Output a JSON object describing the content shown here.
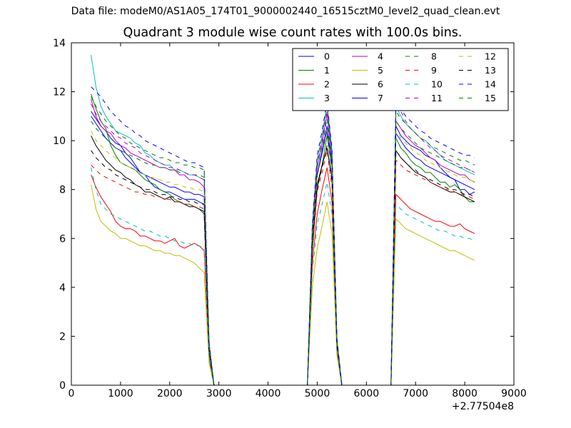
{
  "figure": {
    "suptitle": "Data file: modeM0/AS1A05_174T01_9000002440_16515cztM0_level2_quad_clean.evt",
    "title": "Quadrant 3 module wise count rates with 100.0s bins."
  },
  "chart_data": {
    "type": "line",
    "title": "Quadrant 3 module wise count rates with 100.0s bins.",
    "xlabel": "",
    "ylabel": "",
    "x_offset_text": "+2.77504e8",
    "xlim": [
      0,
      9000
    ],
    "ylim": [
      0,
      14
    ],
    "xticks": [
      0,
      1000,
      2000,
      3000,
      4000,
      5000,
      6000,
      7000,
      8000,
      9000
    ],
    "yticks": [
      0,
      2,
      4,
      6,
      8,
      10,
      12,
      14
    ],
    "grid": false,
    "legend": {
      "placement": "top-right",
      "columns": 4
    },
    "segments": [
      {
        "x_start": 400,
        "x_end": 2700,
        "step": 100
      },
      {
        "x_start": 4900,
        "x_end": 5300,
        "step": 100
      },
      {
        "x_start": 6600,
        "x_end": 8200,
        "step": 100
      }
    ],
    "series": [
      {
        "name": "0",
        "color": "#0000ff",
        "style": "solid",
        "s1": [
          11.2,
          10.9,
          10.6,
          10.4,
          10.1,
          9.9,
          9.8,
          9.5,
          9.3,
          9.0,
          8.7,
          8.6,
          8.3,
          8.1,
          8.0,
          7.9,
          7.9,
          7.8,
          7.7,
          7.6,
          7.6,
          7.6,
          7.5,
          7.4
        ],
        "s2": [
          6.0,
          8.6,
          9.6,
          10.6,
          9.0
        ],
        "s3": [
          10.6,
          10.2,
          10.0,
          9.8,
          9.7,
          9.6,
          9.4,
          9.3,
          9.2,
          8.9,
          8.7,
          8.5,
          8.4,
          8.0,
          8.0,
          7.8,
          7.9
        ]
      },
      {
        "name": "1",
        "color": "#008000",
        "style": "solid",
        "s1": [
          11.9,
          11.3,
          10.8,
          10.5,
          9.8,
          9.4,
          9.1,
          9.0,
          8.9,
          8.8,
          8.6,
          8.4,
          8.3,
          8.2,
          8.0,
          7.9,
          7.8,
          7.6,
          7.5,
          7.4,
          7.4,
          7.3,
          7.2,
          7.0
        ],
        "s2": [
          5.5,
          8.0,
          9.0,
          10.2,
          8.8
        ],
        "s3": [
          10.1,
          9.7,
          9.5,
          9.2,
          9.0,
          8.9,
          8.7,
          8.7,
          8.5,
          8.3,
          8.3,
          8.1,
          8.2,
          8.0,
          7.7,
          7.5,
          7.5
        ]
      },
      {
        "name": "2",
        "color": "#ff0000",
        "style": "solid",
        "s1": [
          8.6,
          8.1,
          7.7,
          7.4,
          7.1,
          6.7,
          6.5,
          6.4,
          6.4,
          6.3,
          6.1,
          6.1,
          6.0,
          5.9,
          5.9,
          5.8,
          5.9,
          6.0,
          5.7,
          5.6,
          5.7,
          5.8,
          5.7,
          5.5
        ],
        "s2": [
          5.0,
          7.0,
          8.0,
          8.9,
          7.5
        ],
        "s3": [
          7.8,
          7.6,
          7.4,
          7.2,
          7.1,
          7.0,
          6.9,
          6.8,
          6.7,
          6.7,
          6.6,
          6.5,
          6.5,
          6.6,
          6.4,
          6.3,
          6.2
        ]
      },
      {
        "name": "3",
        "color": "#00bfbf",
        "style": "solid",
        "s1": [
          13.5,
          12.2,
          11.4,
          11.0,
          10.7,
          10.4,
          10.3,
          10.2,
          10.1,
          9.9,
          9.8,
          9.5,
          9.4,
          9.2,
          9.1,
          9.0,
          9.0,
          8.8,
          8.8,
          8.7,
          8.6,
          8.6,
          8.5,
          8.4
        ],
        "s2": [
          6.5,
          9.2,
          10.2,
          11.5,
          9.6
        ],
        "s3": [
          11.4,
          11.0,
          10.7,
          10.5,
          10.3,
          10.1,
          10.0,
          9.8,
          9.6,
          9.4,
          9.2,
          9.1,
          9.0,
          8.9,
          8.8,
          8.7,
          8.6
        ]
      },
      {
        "name": "4",
        "color": "#bf00bf",
        "style": "solid",
        "s1": [
          11.7,
          11.0,
          10.6,
          10.4,
          10.3,
          10.0,
          9.8,
          9.7,
          9.5,
          9.4,
          9.3,
          9.2,
          9.1,
          9.0,
          8.9,
          8.9,
          8.8,
          8.8,
          8.6,
          8.6,
          8.4,
          8.4,
          8.3,
          8.1
        ],
        "s2": [
          6.2,
          8.9,
          9.9,
          11.1,
          9.3
        ],
        "s3": [
          10.8,
          10.5,
          10.2,
          10.0,
          9.8,
          9.7,
          9.5,
          9.3,
          9.2,
          9.0,
          8.9,
          8.8,
          8.7,
          8.6,
          8.6,
          8.4,
          8.3
        ]
      },
      {
        "name": "5",
        "color": "#bfbf00",
        "style": "solid",
        "s1": [
          8.2,
          7.2,
          6.7,
          6.5,
          6.3,
          6.2,
          6.0,
          6.0,
          5.9,
          5.8,
          5.7,
          5.7,
          5.6,
          5.5,
          5.5,
          5.4,
          5.4,
          5.3,
          5.3,
          5.2,
          5.1,
          5.0,
          4.8,
          4.6
        ],
        "s2": [
          4.0,
          5.6,
          6.5,
          7.5,
          6.2
        ],
        "s3": [
          6.8,
          6.6,
          6.4,
          6.3,
          6.2,
          6.1,
          6.0,
          5.9,
          5.8,
          5.7,
          5.6,
          5.5,
          5.5,
          5.4,
          5.3,
          5.2,
          5.1
        ]
      },
      {
        "name": "6",
        "color": "#000000",
        "style": "solid",
        "s1": [
          10.2,
          9.8,
          9.5,
          9.2,
          9.0,
          8.8,
          8.7,
          8.5,
          8.4,
          8.2,
          8.1,
          7.9,
          7.9,
          7.8,
          7.7,
          7.6,
          7.7,
          7.5,
          7.5,
          7.4,
          7.3,
          7.3,
          7.2,
          7.1
        ],
        "s2": [
          5.8,
          8.2,
          9.0,
          9.7,
          8.5
        ],
        "s3": [
          9.6,
          9.3,
          9.1,
          8.9,
          8.7,
          8.6,
          8.5,
          8.3,
          8.2,
          8.1,
          8.0,
          7.9,
          7.9,
          7.8,
          7.7,
          7.6,
          7.5
        ]
      },
      {
        "name": "7",
        "color": "#0000ff",
        "style": "solid",
        "s1": [
          11.0,
          10.7,
          10.4,
          10.1,
          9.9,
          9.7,
          9.6,
          9.3,
          9.1,
          8.9,
          8.7,
          8.6,
          8.5,
          8.4,
          8.3,
          8.2,
          8.1,
          8.1,
          8.0,
          7.9,
          7.9,
          7.8,
          7.8,
          7.7
        ],
        "s2": [
          6.1,
          8.6,
          9.5,
          10.4,
          8.9
        ],
        "s3": [
          10.3,
          10.0,
          9.7,
          9.5,
          9.3,
          9.2,
          9.0,
          8.9,
          8.8,
          8.7,
          8.6,
          8.5,
          8.4,
          8.3,
          8.2,
          8.1,
          8.0
        ]
      },
      {
        "name": "8",
        "color": "#008000",
        "style": "dashed",
        "s1": [
          10.8,
          10.5,
          10.3,
          10.1,
          9.9,
          9.7,
          9.6,
          9.5,
          9.4,
          9.3,
          9.2,
          9.1,
          9.0,
          9.0,
          8.9,
          8.9,
          8.8,
          8.8,
          8.7,
          8.7,
          8.6,
          8.6,
          8.6,
          8.5
        ],
        "s2": [
          6.3,
          8.9,
          9.8,
          10.9,
          9.2
        ],
        "s3": [
          10.8,
          10.5,
          10.3,
          10.1,
          9.9,
          9.7,
          9.6,
          9.5,
          9.4,
          9.3,
          9.2,
          9.1,
          9.0,
          8.9,
          8.9,
          8.8,
          8.7
        ]
      },
      {
        "name": "9",
        "color": "#ff0000",
        "style": "dashed",
        "s1": [
          9.0,
          8.8,
          8.6,
          8.5,
          8.4,
          8.3,
          8.2,
          8.1,
          8.0,
          7.9,
          7.9,
          7.8,
          7.8,
          7.7,
          7.7,
          7.6,
          7.6,
          7.5,
          7.5,
          7.4,
          7.4,
          7.3,
          7.3,
          7.2
        ],
        "s2": [
          5.6,
          7.9,
          8.7,
          9.6,
          8.1
        ],
        "s3": [
          9.2,
          9.0,
          8.8,
          8.7,
          8.6,
          8.5,
          8.4,
          8.3,
          8.2,
          8.1,
          8.0,
          8.0,
          7.9,
          7.8,
          7.8,
          7.7,
          7.6
        ]
      },
      {
        "name": "10",
        "color": "#00bfbf",
        "style": "dashed",
        "s1": [
          8.9,
          8.0,
          7.4,
          7.2,
          7.0,
          6.9,
          6.8,
          6.7,
          6.6,
          6.5,
          6.4,
          6.3,
          6.3,
          6.2,
          6.1,
          6.1,
          6.0,
          5.9,
          5.9,
          5.8,
          5.8,
          5.7,
          5.7,
          5.6
        ],
        "s2": [
          4.6,
          6.6,
          7.4,
          8.3,
          7.0
        ],
        "s3": [
          7.4,
          7.2,
          7.0,
          6.9,
          6.8,
          6.7,
          6.6,
          6.5,
          6.4,
          6.3,
          6.3,
          6.2,
          6.1,
          6.1,
          6.0,
          6.0,
          5.9
        ]
      },
      {
        "name": "11",
        "color": "#bf00bf",
        "style": "dashed",
        "s1": [
          11.5,
          11.1,
          10.8,
          10.6,
          10.4,
          10.2,
          10.1,
          9.9,
          9.8,
          9.7,
          9.5,
          9.4,
          9.3,
          9.2,
          9.1,
          9.0,
          8.9,
          8.9,
          8.8,
          8.7,
          8.6,
          8.6,
          8.5,
          8.4
        ],
        "s2": [
          6.4,
          9.0,
          10.0,
          11.2,
          9.4
        ],
        "s3": [
          11.8,
          11.2,
          10.8,
          10.5,
          10.3,
          10.1,
          9.9,
          9.7,
          9.6,
          9.4,
          9.3,
          9.2,
          9.1,
          9.0,
          8.9,
          8.8,
          8.7
        ]
      },
      {
        "name": "12",
        "color": "#bfbf00",
        "style": "dashed",
        "s1": [
          10.4,
          10.0,
          9.8,
          9.6,
          9.4,
          9.3,
          9.1,
          9.0,
          8.9,
          8.8,
          8.7,
          8.6,
          8.5,
          8.5,
          8.4,
          8.3,
          8.3,
          8.2,
          8.2,
          8.1,
          8.1,
          8.0,
          8.0,
          7.9
        ],
        "s2": [
          6.0,
          8.5,
          9.4,
          10.4,
          8.8
        ],
        "s3": [
          10.4,
          10.1,
          9.9,
          9.7,
          9.5,
          9.4,
          9.2,
          9.1,
          9.0,
          8.9,
          8.8,
          8.7,
          8.6,
          8.5,
          8.5,
          8.4,
          8.3
        ]
      },
      {
        "name": "13",
        "color": "#000000",
        "style": "dashed",
        "s1": [
          9.6,
          9.3,
          9.1,
          8.9,
          8.8,
          8.6,
          8.5,
          8.4,
          8.3,
          8.2,
          8.1,
          8.0,
          8.0,
          7.9,
          7.8,
          7.8,
          7.7,
          7.7,
          7.6,
          7.6,
          7.5,
          7.5,
          7.4,
          7.4
        ],
        "s2": [
          5.7,
          8.1,
          8.9,
          9.8,
          8.3
        ],
        "s3": [
          9.6,
          9.3,
          9.1,
          8.9,
          8.8,
          8.6,
          8.5,
          8.4,
          8.3,
          8.2,
          8.1,
          8.0,
          8.0,
          7.9,
          7.8,
          7.8,
          7.7
        ]
      },
      {
        "name": "14",
        "color": "#0000ff",
        "style": "dashed",
        "s1": [
          12.2,
          12.0,
          11.8,
          11.5,
          11.2,
          11.0,
          10.8,
          10.6,
          10.5,
          10.3,
          10.2,
          10.0,
          9.9,
          9.8,
          9.7,
          9.6,
          9.5,
          9.4,
          9.3,
          9.2,
          9.1,
          9.1,
          9.0,
          8.9
        ],
        "s2": [
          6.6,
          9.4,
          10.4,
          11.6,
          9.7
        ],
        "s3": [
          11.6,
          11.3,
          11.0,
          10.8,
          10.6,
          10.4,
          10.3,
          10.1,
          10.0,
          9.9,
          9.8,
          9.7,
          9.6,
          9.5,
          9.4,
          9.4,
          9.3
        ]
      },
      {
        "name": "15",
        "color": "#008000",
        "style": "dashed",
        "s1": [
          11.8,
          11.4,
          11.1,
          10.8,
          10.6,
          10.4,
          10.2,
          10.1,
          9.9,
          9.8,
          9.7,
          9.6,
          9.5,
          9.4,
          9.3,
          9.3,
          9.2,
          9.1,
          9.1,
          9.0,
          9.0,
          8.9,
          8.9,
          8.8
        ],
        "s2": [
          6.5,
          9.2,
          10.2,
          11.4,
          9.5
        ],
        "s3": [
          11.2,
          10.9,
          10.7,
          10.5,
          10.3,
          10.1,
          10.0,
          9.8,
          9.7,
          9.6,
          9.5,
          9.4,
          9.3,
          9.2,
          9.2,
          9.1,
          9.0
        ]
      }
    ]
  }
}
